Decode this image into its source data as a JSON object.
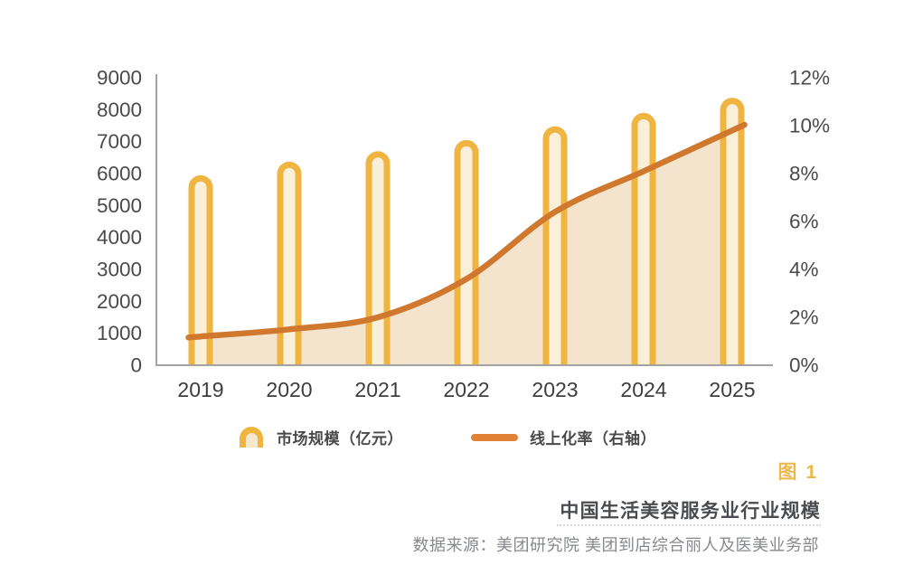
{
  "chart_data": {
    "type": "combo",
    "categories": [
      "2019",
      "2020",
      "2021",
      "2022",
      "2023",
      "2024",
      "2025"
    ],
    "series": [
      {
        "name": "市场规模（亿元）",
        "type": "bar",
        "axis": "left",
        "values": [
          5950,
          6373,
          6700,
          7050,
          7480,
          7900,
          8375
        ]
      },
      {
        "name": "线上化率（右轴）",
        "type": "line",
        "axis": "right",
        "values": [
          1.2,
          1.5,
          2.0,
          3.6,
          6.4,
          8.1,
          9.8
        ]
      }
    ],
    "left_axis": {
      "min": 0,
      "max": 9000,
      "step": 1000
    },
    "right_axis": {
      "min": 0,
      "max": 12,
      "step": 2,
      "suffix": "%"
    },
    "grid": false,
    "legend_position": "bottom",
    "area_under_line": true
  },
  "caption": {
    "figure_no": "图 1",
    "title": "中国生活美容服务业行业规模",
    "source": "数据来源：美团研究院  美团到店综合丽人及医美业务部"
  },
  "colors": {
    "bar_outer": "#F0B441",
    "bar_inner": "#FAEFD9",
    "bar_inner_icon": "#F6E8CC",
    "area": "rgba(226,184,125,0.38)",
    "line": "#D0782D",
    "line_legend": "#DF8238",
    "axis": "#A3A3A3",
    "tick_text": "#4A4A4A",
    "x_label_text": "#3E3E3E"
  }
}
